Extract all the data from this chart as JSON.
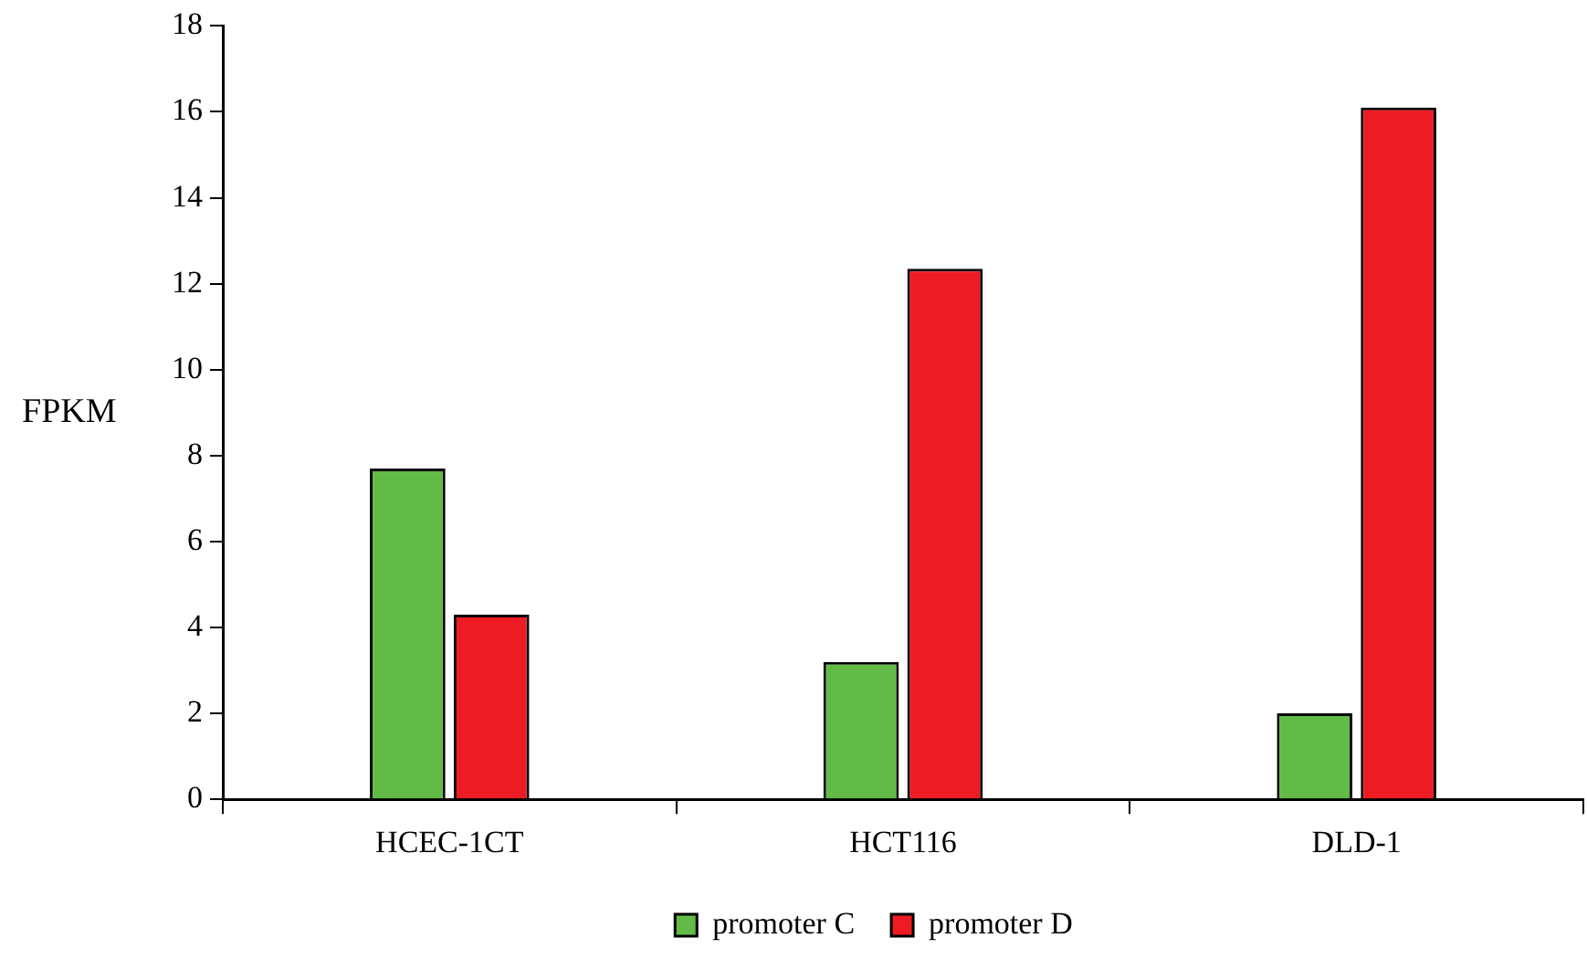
{
  "chart_data": {
    "type": "bar",
    "ylabel": "FPKM",
    "categories": [
      "HCEC-1CT",
      "HCT116",
      "DLD-1"
    ],
    "series": [
      {
        "name": "promoter C",
        "color": "#62bb46",
        "values": [
          7.7,
          3.2,
          2.0
        ]
      },
      {
        "name": "promoter D",
        "color": "#ed1c24",
        "values": [
          4.3,
          12.35,
          16.1
        ]
      }
    ],
    "ylim": [
      0,
      18
    ],
    "yticks": [
      0,
      2,
      4,
      6,
      8,
      10,
      12,
      14,
      16,
      18
    ],
    "grid": false,
    "legend": "bottom"
  }
}
